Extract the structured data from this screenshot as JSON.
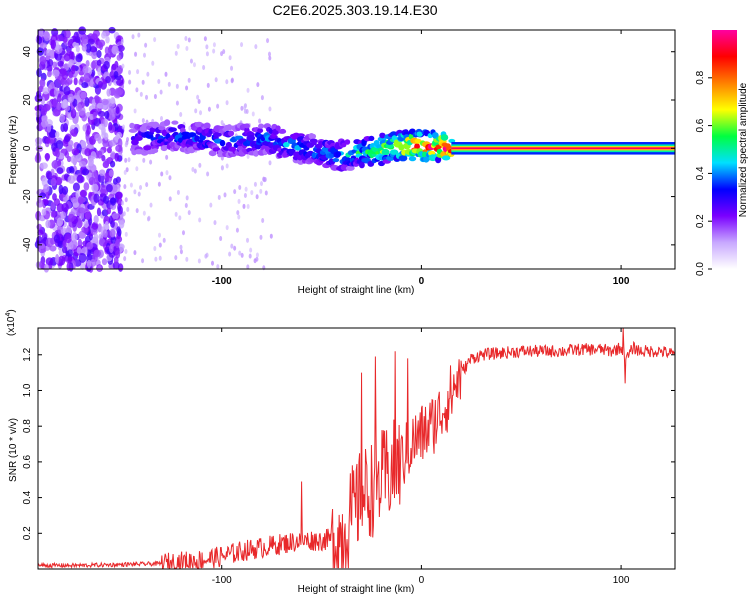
{
  "figure_title": "C2E6.2025.303.19.14.E30",
  "chart_data": [
    {
      "type": "heatmap",
      "title": "C2E6.2025.303.19.14.E30",
      "xlabel": "Height of straight line (km)",
      "ylabel": "Frequency (Hz)",
      "xlim": [
        -192,
        127
      ],
      "ylim": [
        -50,
        49
      ],
      "xticks": [
        -100,
        0,
        100
      ],
      "xtick_labels": [
        "-100",
        "0",
        "100"
      ],
      "yticks": [
        -40,
        -20,
        0,
        20,
        40
      ],
      "ytick_labels": [
        "-40",
        "-20",
        "0",
        "20",
        "40"
      ],
      "colorbar": {
        "label": "Normalized spectral amplitude",
        "range": [
          0.0,
          1.0
        ],
        "ticks": [
          0.0,
          0.2,
          0.4,
          0.6,
          0.8
        ],
        "tick_labels": [
          "0.0",
          "0.2",
          "0.4",
          "0.6",
          "0.8"
        ],
        "colormap": [
          "#ffffff",
          "#c8a8ff",
          "#7a00ff",
          "#0000ff",
          "#00e0ff",
          "#00ff40",
          "#ffff00",
          "#ff8000",
          "#ff0000",
          "#ff00a0"
        ]
      },
      "ridge": [
        {
          "x": -145,
          "f": 4,
          "amp": 0.3
        },
        {
          "x": -120,
          "f": 5,
          "amp": 0.35
        },
        {
          "x": -100,
          "f": 3,
          "amp": 0.35
        },
        {
          "x": -80,
          "f": 4,
          "amp": 0.4
        },
        {
          "x": -60,
          "f": 0,
          "amp": 0.4
        },
        {
          "x": -40,
          "f": -3,
          "amp": 0.45
        },
        {
          "x": -25,
          "f": -1,
          "amp": 0.55
        },
        {
          "x": -10,
          "f": 1,
          "amp": 0.75
        },
        {
          "x": 0,
          "f": 1,
          "amp": 0.85
        },
        {
          "x": 20,
          "f": 0,
          "amp": 0.9
        },
        {
          "x": 60,
          "f": 0,
          "amp": 0.92
        },
        {
          "x": 100,
          "f": 0,
          "amp": 0.92
        },
        {
          "x": 127,
          "f": 0,
          "amp": 0.92
        }
      ],
      "noise_floor_region_x": [
        -192,
        -150
      ]
    },
    {
      "type": "line",
      "xlabel": "Height of straight line (km)",
      "ylabel": "SNR (10 * v/v)",
      "y_multiplier_label": "(x10",
      "y_multiplier_exp": "4",
      "y_multiplier_close": ")",
      "xlim": [
        -192,
        127
      ],
      "ylim": [
        0,
        1.35
      ],
      "xticks": [
        -100,
        0,
        100
      ],
      "xtick_labels": [
        "-100",
        "0",
        "100"
      ],
      "yticks": [
        0.2,
        0.4,
        0.6,
        0.8,
        1.0,
        1.2
      ],
      "ytick_labels": [
        "0.2",
        "0.4",
        "0.6",
        "0.8",
        "1.0",
        "1.2"
      ],
      "line_color": "#e8282a",
      "series": [
        {
          "name": "SNR",
          "x": [
            -192,
            -170,
            -150,
            -130,
            -110,
            -100,
            -90,
            -80,
            -70,
            -60,
            -50,
            -40,
            -35,
            -30,
            -25,
            -20,
            -15,
            -10,
            -5,
            0,
            5,
            10,
            15,
            20,
            25,
            30,
            40,
            50,
            60,
            70,
            80,
            90,
            95,
            100,
            103,
            106,
            110,
            120,
            127
          ],
          "y": [
            0.02,
            0.02,
            0.025,
            0.03,
            0.05,
            0.07,
            0.1,
            0.12,
            0.14,
            0.16,
            0.16,
            0.18,
            0.3,
            0.4,
            0.45,
            0.5,
            0.55,
            0.6,
            0.7,
            0.75,
            0.8,
            0.88,
            0.98,
            1.1,
            1.18,
            1.2,
            1.21,
            1.22,
            1.22,
            1.22,
            1.23,
            1.23,
            1.22,
            1.24,
            1.18,
            1.24,
            1.22,
            1.22,
            1.2
          ]
        }
      ],
      "spikes": [
        {
          "x": -60,
          "y": 0.49
        },
        {
          "x": -30,
          "y": 1.1
        },
        {
          "x": -23,
          "y": 1.19
        },
        {
          "x": -13,
          "y": 1.22
        },
        {
          "x": -7,
          "y": 1.18
        },
        {
          "x": 101,
          "y": 1.35
        },
        {
          "x": 102,
          "y": 1.04
        }
      ]
    }
  ]
}
